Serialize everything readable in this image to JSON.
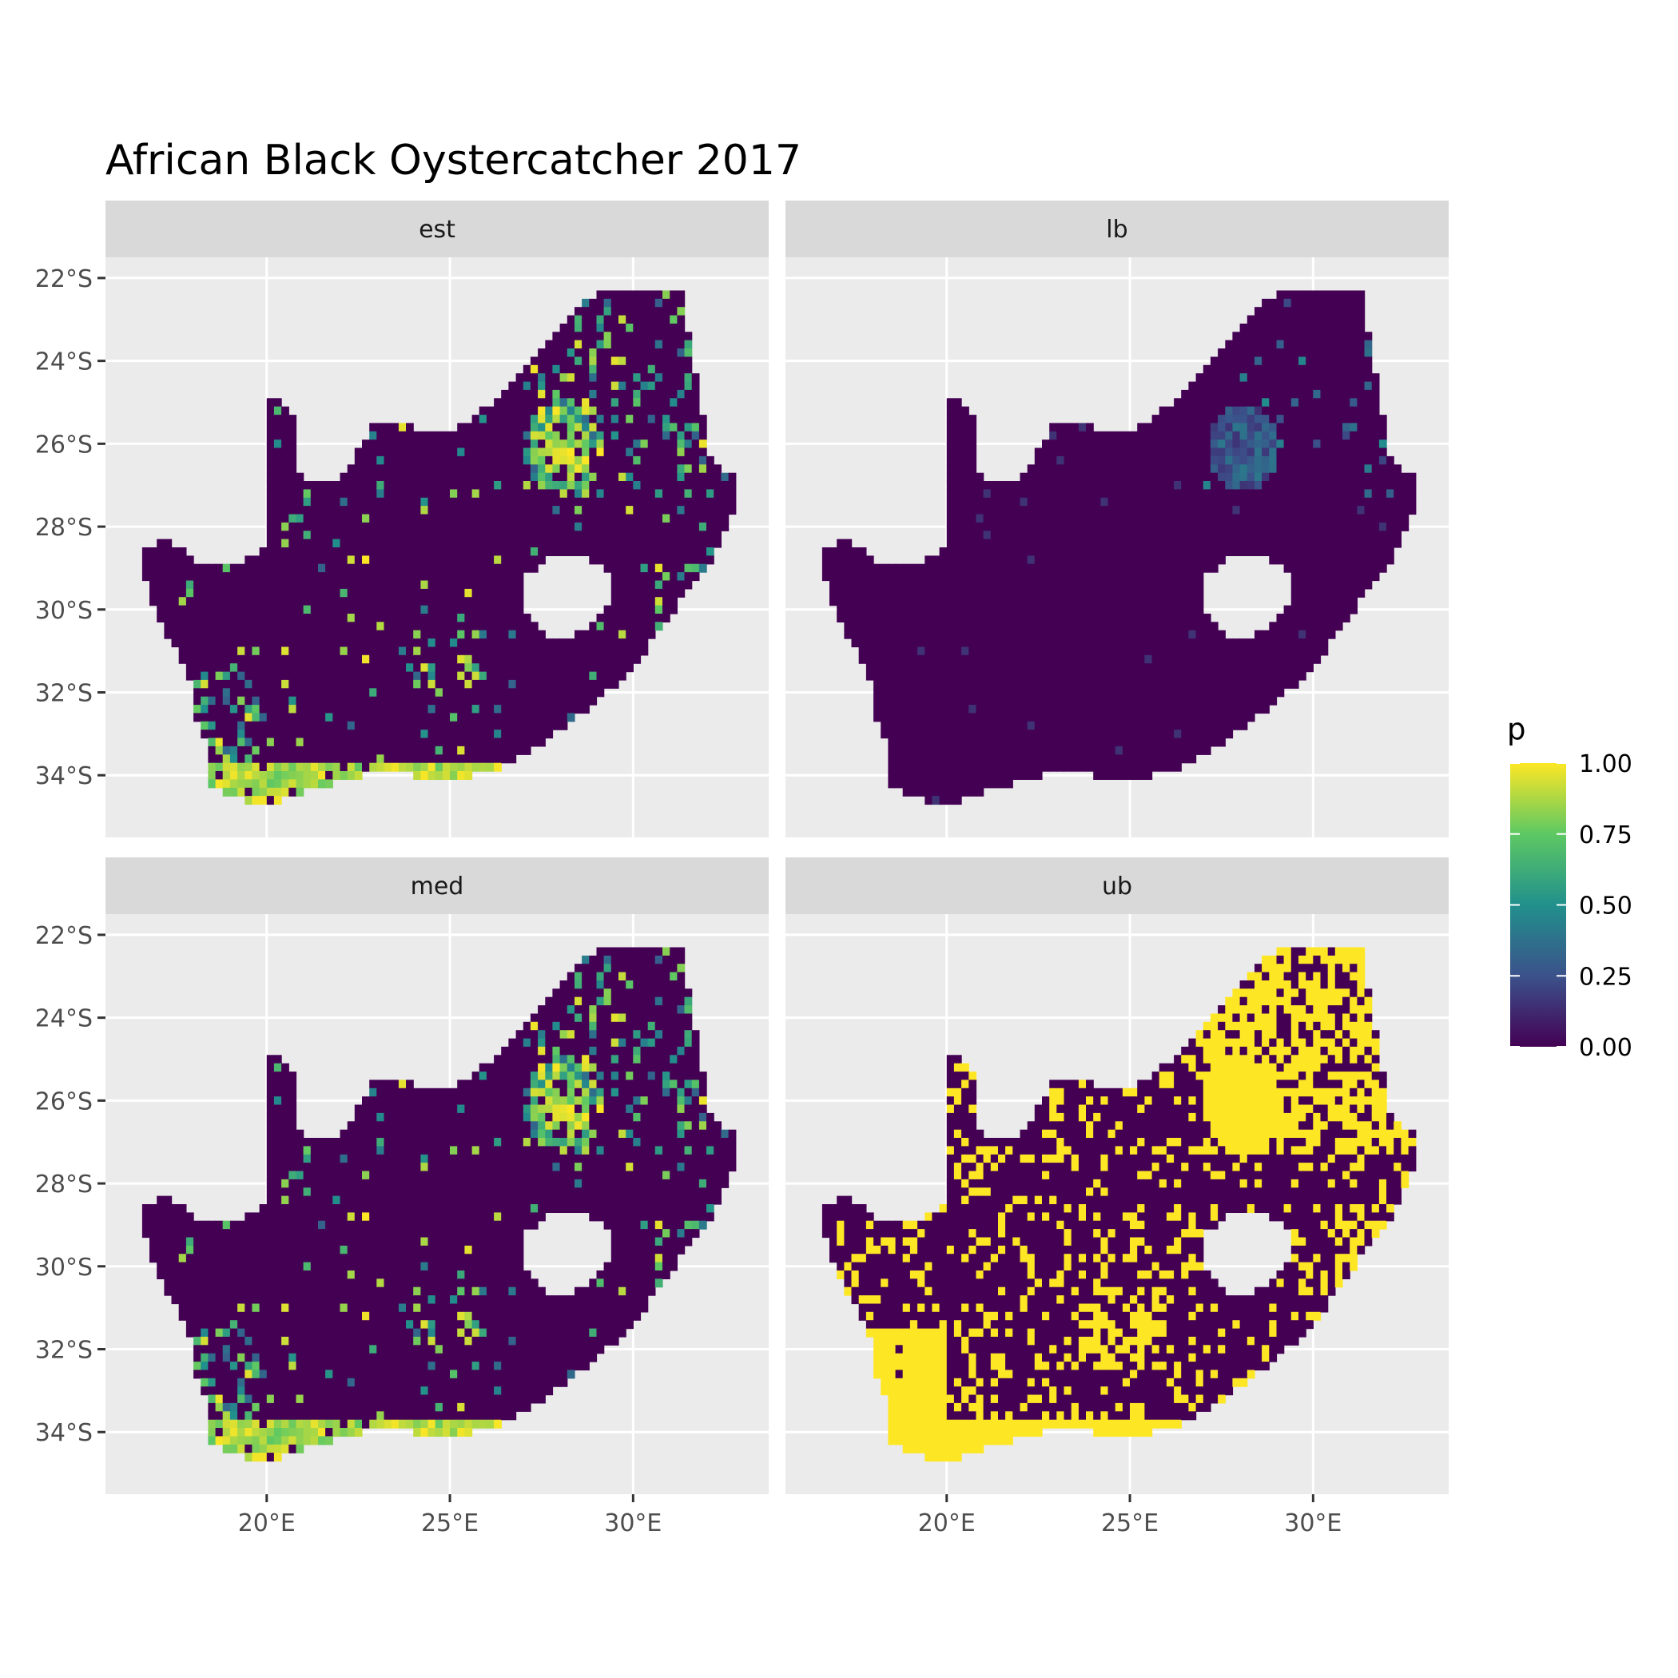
{
  "chart_data": {
    "type": "heatmap",
    "title": "African Black Oystercatcher 2017",
    "facets": [
      {
        "label": "est",
        "style": "mixed"
      },
      {
        "label": "lb",
        "style": "low"
      },
      {
        "label": "med",
        "style": "mixed"
      },
      {
        "label": "ub",
        "style": "high"
      }
    ],
    "x_ticks": [
      "20°E",
      "25°E",
      "30°E"
    ],
    "x_tick_values": [
      20,
      25,
      30
    ],
    "y_ticks": [
      "22°S",
      "24°S",
      "26°S",
      "28°S",
      "30°S",
      "32°S",
      "34°S"
    ],
    "y_tick_values": [
      -22,
      -24,
      -26,
      -28,
      -30,
      -32,
      -34
    ],
    "xlim": [
      15.6,
      33.7
    ],
    "ylim": [
      -35.5,
      -21.5
    ],
    "legend": {
      "title": "p",
      "labels": [
        "1.00",
        "0.75",
        "0.50",
        "0.25",
        "0.00"
      ],
      "values": [
        1.0,
        0.75,
        0.5,
        0.25,
        0.0
      ],
      "colors": [
        "#440154",
        "#3b528b",
        "#21908c",
        "#5dc863",
        "#fde725"
      ],
      "placement": "right"
    },
    "region": {
      "outline_lonlat": [
        [
          16.5,
          -28.6
        ],
        [
          17.3,
          -28.3
        ],
        [
          18.2,
          -28.9
        ],
        [
          19.1,
          -28.9
        ],
        [
          20.0,
          -28.5
        ],
        [
          20.0,
          -24.8
        ],
        [
          20.8,
          -25.3
        ],
        [
          20.9,
          -26.8
        ],
        [
          22.0,
          -26.9
        ],
        [
          23.0,
          -25.4
        ],
        [
          24.0,
          -25.6
        ],
        [
          25.0,
          -25.7
        ],
        [
          25.6,
          -25.4
        ],
        [
          26.6,
          -24.6
        ],
        [
          27.3,
          -23.9
        ],
        [
          28.3,
          -22.8
        ],
        [
          29.4,
          -22.2
        ],
        [
          30.5,
          -22.3
        ],
        [
          31.3,
          -22.4
        ],
        [
          31.6,
          -23.7
        ],
        [
          32.0,
          -25.8
        ],
        [
          32.1,
          -26.4
        ],
        [
          32.9,
          -26.9
        ],
        [
          32.6,
          -28.0
        ],
        [
          32.1,
          -28.8
        ],
        [
          31.4,
          -29.6
        ],
        [
          30.8,
          -30.4
        ],
        [
          30.0,
          -31.4
        ],
        [
          29.0,
          -32.2
        ],
        [
          28.1,
          -32.8
        ],
        [
          27.2,
          -33.4
        ],
        [
          26.4,
          -33.8
        ],
        [
          25.6,
          -34.0
        ],
        [
          24.8,
          -34.2
        ],
        [
          23.6,
          -33.9
        ],
        [
          22.5,
          -34.0
        ],
        [
          21.5,
          -34.3
        ],
        [
          20.6,
          -34.5
        ],
        [
          20.0,
          -34.8
        ],
        [
          19.4,
          -34.6
        ],
        [
          18.8,
          -34.4
        ],
        [
          18.3,
          -34.1
        ],
        [
          18.4,
          -33.2
        ],
        [
          18.0,
          -32.6
        ],
        [
          17.9,
          -31.7
        ],
        [
          17.3,
          -30.6
        ],
        [
          16.8,
          -29.6
        ]
      ],
      "hole_lonlat": [
        [
          27.0,
          -29.2
        ],
        [
          27.6,
          -28.8
        ],
        [
          28.6,
          -28.7
        ],
        [
          29.3,
          -29.0
        ],
        [
          29.4,
          -29.8
        ],
        [
          29.0,
          -30.3
        ],
        [
          28.3,
          -30.7
        ],
        [
          27.6,
          -30.6
        ],
        [
          27.1,
          -30.1
        ]
      ]
    }
  }
}
